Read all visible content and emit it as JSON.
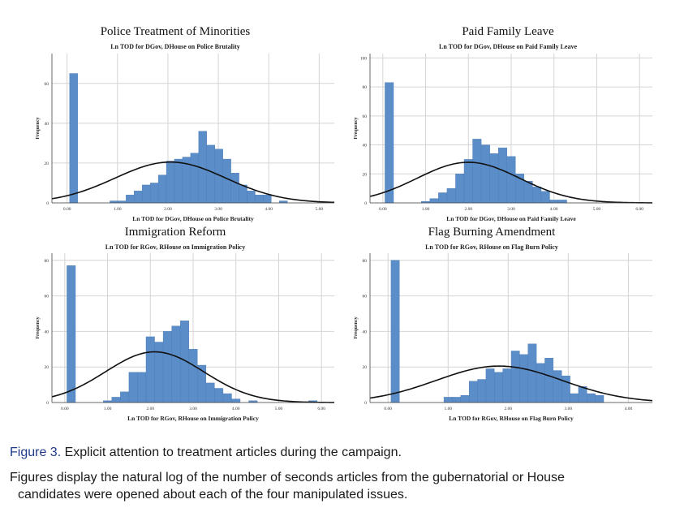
{
  "chart_data": [
    {
      "type": "bar",
      "title": "Police Treatment of Minorities",
      "subtitle": "Ln TOD for DGov, DHouse on Police Brutality",
      "xlabel": "Ln TOD for DGov, DHouse on Police Brutality",
      "ylabel": "Frequency",
      "xlim": [
        -0.3,
        5.3
      ],
      "ylim": [
        0,
        75
      ],
      "xticks": [
        {
          "v": 0,
          "label": "0.00"
        },
        {
          "v": 1,
          "label": "1.00"
        },
        {
          "v": 2,
          "label": "2.00"
        },
        {
          "v": 3,
          "label": "3.00"
        },
        {
          "v": 4,
          "label": "4.00"
        },
        {
          "v": 5,
          "label": "5.00"
        }
      ],
      "yticks": [
        {
          "v": 0,
          "label": "0"
        },
        {
          "v": 20,
          "label": "20"
        },
        {
          "v": 40,
          "label": "40"
        },
        {
          "v": 60,
          "label": "60"
        }
      ],
      "bin_width": 0.16,
      "bins": [
        [
          0.05,
          65
        ],
        [
          0.85,
          1
        ],
        [
          1.01,
          1
        ],
        [
          1.17,
          4
        ],
        [
          1.33,
          6
        ],
        [
          1.49,
          9
        ],
        [
          1.65,
          10
        ],
        [
          1.81,
          14
        ],
        [
          1.97,
          21
        ],
        [
          2.13,
          22
        ],
        [
          2.29,
          23
        ],
        [
          2.45,
          25
        ],
        [
          2.61,
          36
        ],
        [
          2.77,
          29
        ],
        [
          2.93,
          27
        ],
        [
          3.09,
          22
        ],
        [
          3.25,
          15
        ],
        [
          3.41,
          9
        ],
        [
          3.57,
          6
        ],
        [
          3.73,
          4
        ],
        [
          3.89,
          4
        ],
        [
          4.21,
          1
        ]
      ],
      "normal_curve": {
        "mean": 2.05,
        "sd": 1.1,
        "peak": 20.5
      }
    },
    {
      "type": "bar",
      "title": "Paid Family Leave",
      "subtitle": "Ln TOD for DGov, DHouse on Paid Family Leave",
      "xlabel": "Ln TOD for DGov, DHouse on Paid Family Leave",
      "ylabel": "Frequency",
      "xlim": [
        -0.3,
        6.3
      ],
      "ylim": [
        0,
        103
      ],
      "xticks": [
        {
          "v": 0,
          "label": "0.00"
        },
        {
          "v": 1,
          "label": "1.00"
        },
        {
          "v": 2,
          "label": "2.00"
        },
        {
          "v": 3,
          "label": "3.00"
        },
        {
          "v": 4,
          "label": "4.00"
        },
        {
          "v": 5,
          "label": "5.00"
        },
        {
          "v": 6,
          "label": "6.00"
        }
      ],
      "yticks": [
        {
          "v": 0,
          "label": "0"
        },
        {
          "v": 20,
          "label": "20"
        },
        {
          "v": 40,
          "label": "40"
        },
        {
          "v": 60,
          "label": "60"
        },
        {
          "v": 80,
          "label": "80"
        },
        {
          "v": 100,
          "label": "100"
        }
      ],
      "bin_width": 0.2,
      "bins": [
        [
          0.05,
          83
        ],
        [
          0.9,
          1
        ],
        [
          1.1,
          3
        ],
        [
          1.3,
          7
        ],
        [
          1.5,
          10
        ],
        [
          1.7,
          20
        ],
        [
          1.9,
          30
        ],
        [
          2.1,
          44
        ],
        [
          2.3,
          40
        ],
        [
          2.5,
          34
        ],
        [
          2.7,
          38
        ],
        [
          2.9,
          32
        ],
        [
          3.1,
          20
        ],
        [
          3.3,
          15
        ],
        [
          3.5,
          11
        ],
        [
          3.7,
          8
        ],
        [
          3.9,
          2
        ],
        [
          4.1,
          2
        ]
      ],
      "normal_curve": {
        "mean": 2.0,
        "sd": 1.2,
        "peak": 28
      }
    },
    {
      "type": "bar",
      "title": "Immigration Reform",
      "subtitle": "Ln TOD for RGov, RHouse on Immigration Policy",
      "xlabel": "Ln TOD for RGov, RHouse on Immigration Policy",
      "ylabel": "Frequency",
      "xlim": [
        -0.3,
        6.3
      ],
      "ylim": [
        0,
        84
      ],
      "xticks": [
        {
          "v": 0,
          "label": "0.00"
        },
        {
          "v": 1,
          "label": "1.00"
        },
        {
          "v": 2,
          "label": "2.00"
        },
        {
          "v": 3,
          "label": "3.00"
        },
        {
          "v": 4,
          "label": "4.00"
        },
        {
          "v": 5,
          "label": "5.00"
        },
        {
          "v": 6,
          "label": "6.00"
        }
      ],
      "yticks": [
        {
          "v": 0,
          "label": "0"
        },
        {
          "v": 20,
          "label": "20"
        },
        {
          "v": 40,
          "label": "40"
        },
        {
          "v": 60,
          "label": "60"
        },
        {
          "v": 80,
          "label": "80"
        }
      ],
      "bin_width": 0.2,
      "bins": [
        [
          0.05,
          77
        ],
        [
          0.9,
          1
        ],
        [
          1.1,
          3
        ],
        [
          1.3,
          6
        ],
        [
          1.5,
          17
        ],
        [
          1.7,
          17
        ],
        [
          1.9,
          37
        ],
        [
          2.1,
          34
        ],
        [
          2.3,
          40
        ],
        [
          2.5,
          43
        ],
        [
          2.7,
          46
        ],
        [
          2.9,
          30
        ],
        [
          3.1,
          21
        ],
        [
          3.3,
          11
        ],
        [
          3.5,
          8
        ],
        [
          3.7,
          5
        ],
        [
          3.9,
          2
        ],
        [
          4.3,
          1
        ],
        [
          5.7,
          1
        ]
      ],
      "normal_curve": {
        "mean": 2.1,
        "sd": 1.15,
        "peak": 28.5
      }
    },
    {
      "type": "bar",
      "title": "Flag Burning Amendment",
      "subtitle": "Ln TOD for RGov, RHouse on Flag Burn Policy",
      "xlabel": "Ln TOD for RGov, RHouse on Flag Burn Policy",
      "ylabel": "Frequency",
      "xlim": [
        -0.3,
        4.4
      ],
      "ylim": [
        0,
        84
      ],
      "xticks": [
        {
          "v": 0,
          "label": "0.00"
        },
        {
          "v": 1,
          "label": "1.00"
        },
        {
          "v": 2,
          "label": "2.00"
        },
        {
          "v": 3,
          "label": "3.00"
        },
        {
          "v": 4,
          "label": "4.00"
        }
      ],
      "yticks": [
        {
          "v": 0,
          "label": "0"
        },
        {
          "v": 20,
          "label": "20"
        },
        {
          "v": 40,
          "label": "40"
        },
        {
          "v": 60,
          "label": "60"
        },
        {
          "v": 80,
          "label": "80"
        }
      ],
      "bin_width": 0.14,
      "bins": [
        [
          0.05,
          80
        ],
        [
          0.93,
          3
        ],
        [
          1.07,
          3
        ],
        [
          1.21,
          4
        ],
        [
          1.35,
          12
        ],
        [
          1.49,
          13
        ],
        [
          1.63,
          19
        ],
        [
          1.77,
          17
        ],
        [
          1.91,
          19
        ],
        [
          2.05,
          29
        ],
        [
          2.19,
          27
        ],
        [
          2.33,
          33
        ],
        [
          2.47,
          22
        ],
        [
          2.61,
          25
        ],
        [
          2.75,
          18
        ],
        [
          2.89,
          15
        ],
        [
          3.03,
          5
        ],
        [
          3.17,
          9
        ],
        [
          3.31,
          5
        ],
        [
          3.45,
          4
        ]
      ],
      "normal_curve": {
        "mean": 1.85,
        "sd": 1.05,
        "peak": 20.5
      }
    }
  ],
  "caption": {
    "label": "Figure 3.",
    "title": "Explicit attention to treatment articles during the campaign.",
    "body_line1": "Figures display the natural log of the number of seconds articles from the gubernatorial or House",
    "body_line2": "candidates were opened about each of the four manipulated issues."
  },
  "colors": {
    "bar": "#5b8dc9",
    "bar_edge": "#4a7ab3",
    "curve": "#111111",
    "grid": "#d4d4d4"
  }
}
